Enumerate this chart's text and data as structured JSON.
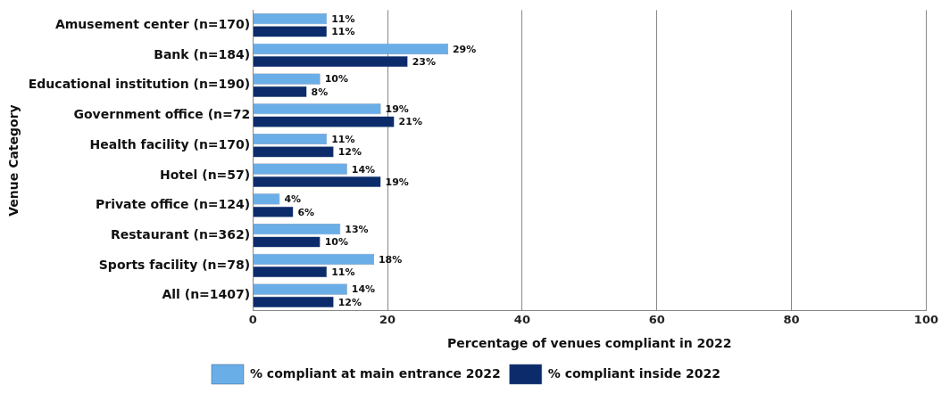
{
  "chart_data": {
    "type": "bar",
    "orientation": "horizontal",
    "xlabel": "Percentage of venues compliant in 2022",
    "ylabel": "Venue Category",
    "categories": [
      "Amusement center (n=170)",
      "Bank (n=184)",
      "Educational institution (n=190)",
      "Government office (n=72",
      "Health facility (n=170)",
      "Hotel (n=57)",
      "Private office (n=124)",
      "Restaurant (n=362)",
      "Sports facility (n=78)",
      "All (n=1407)"
    ],
    "series": [
      {
        "name": "% compliant at main entrance 2022",
        "color": "#6aaee8",
        "values": [
          11,
          29,
          10,
          19,
          11,
          14,
          4,
          13,
          18,
          14
        ],
        "value_labels": [
          "11%",
          "29%",
          "10%",
          "19%",
          "11%",
          "14%",
          "4%",
          "13%",
          "18%",
          "14%"
        ]
      },
      {
        "name": "% compliant inside 2022",
        "color": "#0b2b6b",
        "values": [
          11,
          23,
          8,
          21,
          12,
          19,
          6,
          10,
          11,
          12
        ],
        "value_labels": [
          "11%",
          "23%",
          "8%",
          "21%",
          "12%",
          "19%",
          "6%",
          "10%",
          "11%",
          "12%"
        ]
      }
    ],
    "xlim": [
      0,
      100
    ],
    "xticks": [
      0,
      20,
      40,
      60,
      80,
      100
    ],
    "grid": "x",
    "legend": "bottom"
  }
}
